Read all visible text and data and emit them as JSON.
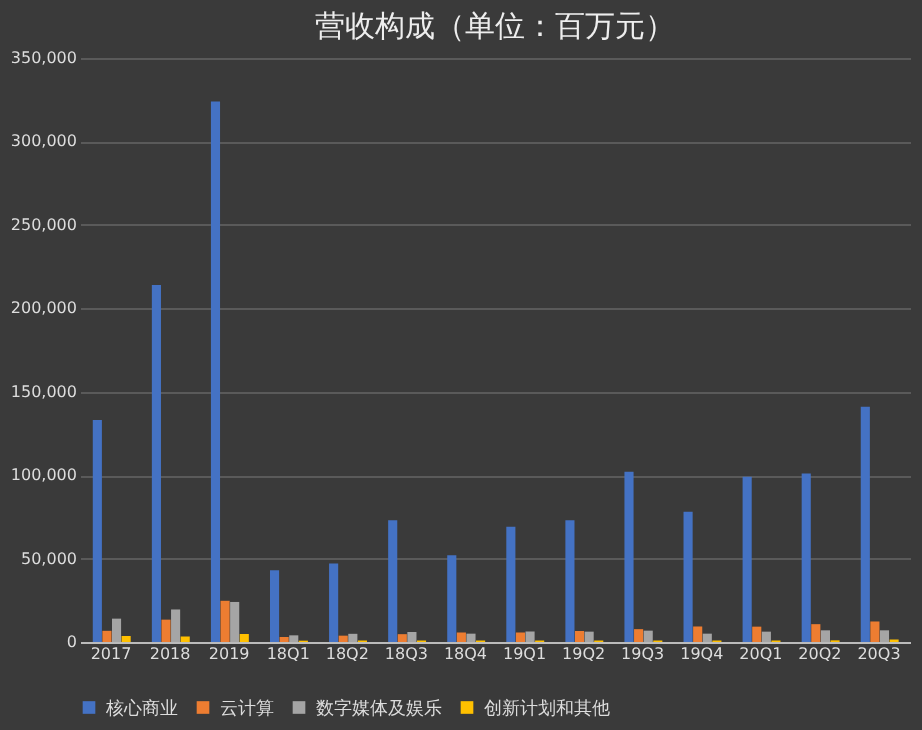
{
  "chart_data": {
    "type": "bar",
    "title": "营收构成（单位：百万元）",
    "categories": [
      "2017",
      "2018",
      "2019",
      "18Q1",
      "18Q2",
      "18Q3",
      "18Q4",
      "19Q1",
      "19Q2",
      "19Q3",
      "19Q4",
      "20Q1",
      "20Q2",
      "20Q3"
    ],
    "series": [
      {
        "name": "核心商业",
        "color": "#4472c4",
        "values": [
          133000,
          214000,
          324000,
          43000,
          47000,
          73000,
          52000,
          69000,
          73000,
          102000,
          78000,
          99000,
          101000,
          141000
        ]
      },
      {
        "name": "云计算",
        "color": "#ed7d31",
        "values": [
          6700,
          13400,
          24700,
          3000,
          3800,
          4700,
          5700,
          5700,
          6600,
          7700,
          9300,
          9200,
          10700,
          12300
        ]
      },
      {
        "name": "数字媒体及娱乐",
        "color": "#a5a5a5",
        "values": [
          14000,
          19500,
          24000,
          4000,
          4900,
          6000,
          5000,
          6300,
          6200,
          6800,
          5000,
          6200,
          7000,
          7000
        ]
      },
      {
        "name": "创新计划和其他",
        "color": "#ffc000",
        "values": [
          3600,
          3300,
          4800,
          800,
          900,
          900,
          900,
          900,
          900,
          900,
          900,
          900,
          1000,
          1500
        ]
      }
    ],
    "ylim": [
      0,
      350000
    ],
    "yticks": [
      {
        "value": 0,
        "label": "0"
      },
      {
        "value": 50000,
        "label": "50,000"
      },
      {
        "value": 100000,
        "label": "100,000"
      },
      {
        "value": 150000,
        "label": "150,000"
      },
      {
        "value": 200000,
        "label": "200,000"
      },
      {
        "value": 250000,
        "label": "250,000"
      },
      {
        "value": 300000,
        "label": "300,000"
      },
      {
        "value": 350000,
        "label": "350,000"
      }
    ],
    "grid": "y",
    "legend": "bottom"
  }
}
